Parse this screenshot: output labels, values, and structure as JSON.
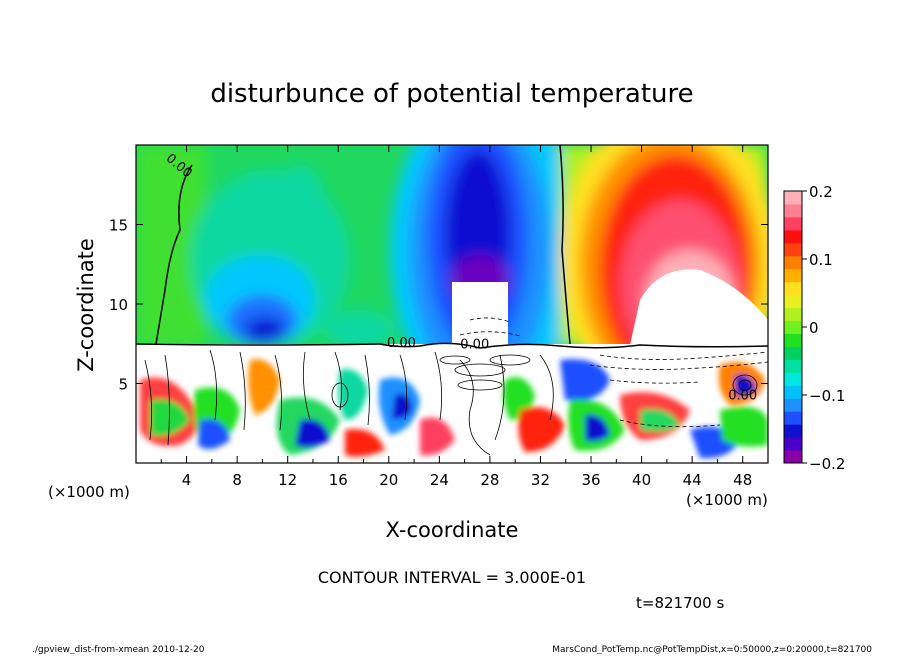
{
  "chart_data": {
    "type": "heatmap",
    "title": "disturbunce of potential temperature",
    "xlabel": "X-coordinate",
    "ylabel": "Z-coordinate",
    "x_unit_left": "(×1000 m)",
    "x_unit_right": "(×1000 m)",
    "xlim": [
      0,
      50
    ],
    "ylim": [
      0,
      20
    ],
    "xticks": [
      4,
      8,
      12,
      16,
      20,
      24,
      28,
      32,
      36,
      40,
      44,
      48
    ],
    "yticks": [
      5,
      10,
      15
    ],
    "contour_labels": [
      {
        "text": "0.00",
        "x": 3.2,
        "y": 18.5
      },
      {
        "text": "0.00",
        "x": 21.0,
        "y": 7.3
      },
      {
        "text": "0.00",
        "x": 26.8,
        "y": 7.2
      },
      {
        "text": "0.00",
        "x": 48.0,
        "y": 4.0
      }
    ],
    "colorbar": {
      "min": -0.2,
      "max": 0.2,
      "ticks": [
        "0.2",
        "0.1",
        "0",
        "−0.1",
        "−0.2"
      ],
      "colors": [
        "#8a00a8",
        "#4a00c8",
        "#1010d0",
        "#1e50ff",
        "#1e90ff",
        "#00c0ff",
        "#00e8e0",
        "#00e0a0",
        "#00d060",
        "#20e020",
        "#70f020",
        "#b0f020",
        "#e8f020",
        "#ffe020",
        "#ffb000",
        "#ff8000",
        "#ff4010",
        "#ff1010",
        "#ff4060",
        "#ff8090",
        "#ffb0b8"
      ]
    },
    "grid": false
  },
  "annotations": {
    "contour_interval": "CONTOUR INTERVAL = 3.000E-01",
    "time": "t=821700 s",
    "footer_left": "./gpview_dist-from-xmean  2010-12-20",
    "footer_right": "MarsCond_PotTemp.nc@PotTempDist,x=0:50000,z=0:20000,t=821700"
  }
}
